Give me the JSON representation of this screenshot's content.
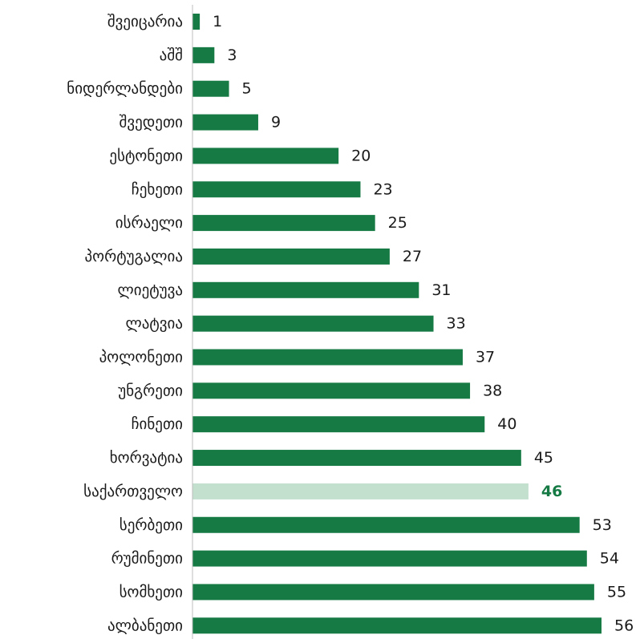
{
  "chart_data": {
    "type": "bar",
    "orientation": "horizontal",
    "categories": [
      "შვეიცარია",
      "აშშ",
      "ნიდერლანდები",
      "შვედეთი",
      "ესტონეთი",
      "ჩეხეთი",
      "ისრაელი",
      "პორტუგალია",
      "ლიეტუვა",
      "ლატვია",
      "პოლონეთი",
      "უნგრეთი",
      "ჩინეთი",
      "ხორვატია",
      "საქართველო",
      "სერბეთი",
      "რუმინეთი",
      "სომხეთი",
      "ალბანეთი"
    ],
    "values": [
      1,
      3,
      5,
      9,
      20,
      23,
      25,
      27,
      31,
      33,
      37,
      38,
      40,
      45,
      46,
      53,
      54,
      55,
      56
    ],
    "value_labels": [
      "1",
      "3",
      "5",
      "9",
      "20",
      "23",
      "25",
      "27",
      "31",
      "33",
      "37",
      "38",
      "40",
      "45",
      "46",
      "53",
      "54",
      "55",
      "56"
    ],
    "highlight_index": 14,
    "xlim": [
      0,
      56
    ],
    "grid": false,
    "legend": "none",
    "title": "",
    "xlabel": "",
    "ylabel": ""
  },
  "colors": {
    "bar": "#167a45",
    "highlight_bar": "#c3e0cf",
    "highlight_label": "#167a45",
    "axis": "#bdbdbd",
    "text": "#1a1a1a"
  }
}
